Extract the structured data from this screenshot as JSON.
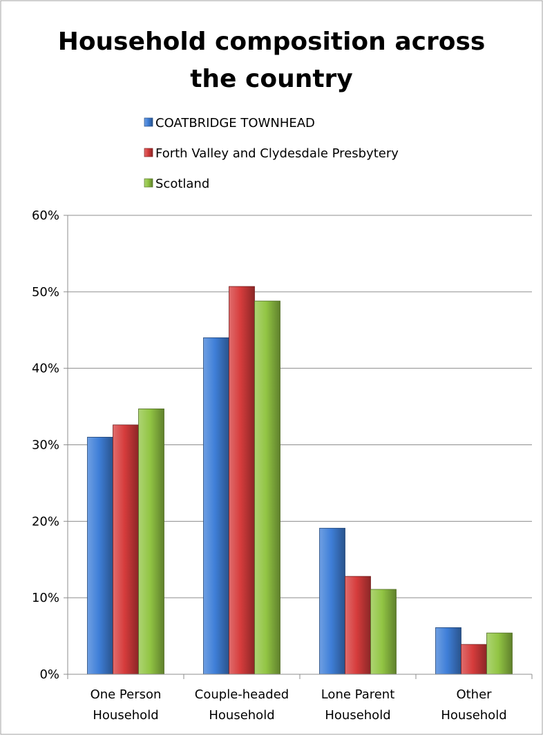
{
  "chart_data": {
    "type": "bar",
    "title_lines": [
      "Household composition across",
      "the country"
    ],
    "xlabel": "",
    "ylabel": "",
    "categories": [
      [
        "One Person",
        "Household"
      ],
      [
        "Couple-headed",
        "Household"
      ],
      [
        "Lone Parent",
        "Household"
      ],
      [
        "Other",
        "Household"
      ]
    ],
    "series": [
      {
        "name": "COATBRIDGE TOWNHEAD",
        "color": "#3F7FD8",
        "values": [
          31.0,
          44.0,
          19.1,
          6.1
        ]
      },
      {
        "name": "Forth Valley and Clydesdale Presbytery",
        "color": "#D63C3C",
        "values": [
          32.6,
          50.7,
          12.8,
          3.9
        ]
      },
      {
        "name": "Scotland",
        "color": "#92C544",
        "values": [
          34.7,
          48.8,
          11.1,
          5.4
        ]
      }
    ],
    "y_ticks": [
      "0%",
      "10%",
      "20%",
      "30%",
      "40%",
      "50%",
      "60%"
    ],
    "ylim": [
      0,
      60
    ],
    "grid": true,
    "legend_position": "top"
  }
}
